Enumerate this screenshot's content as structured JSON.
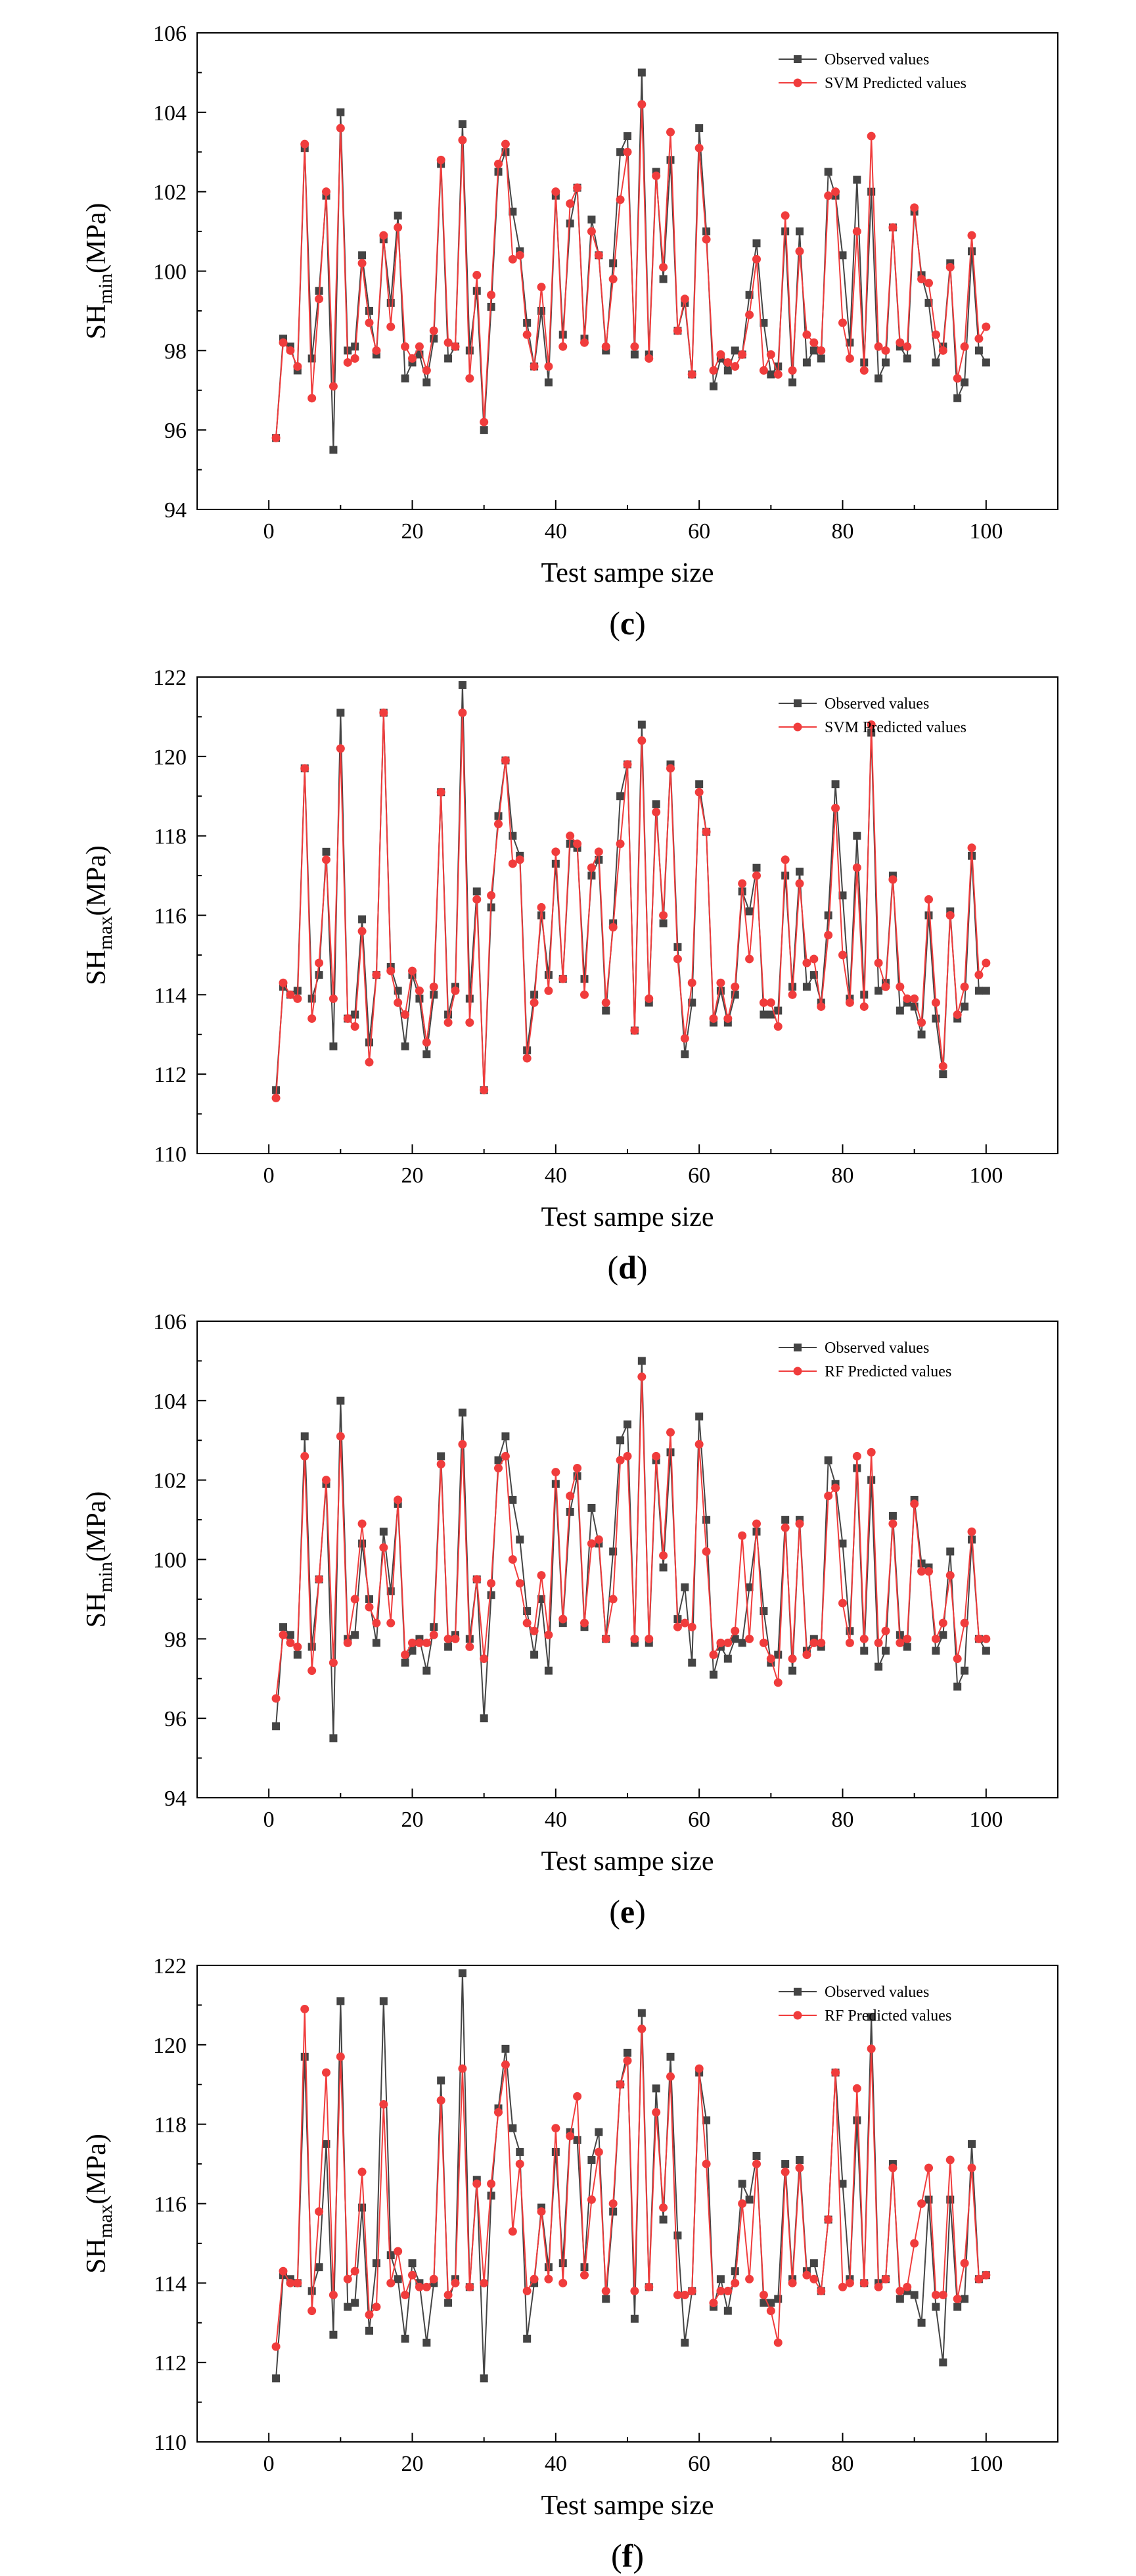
{
  "legend": {
    "observed_label": "Observed values",
    "observed_color": "#444444",
    "predicted_color": "#f03c3c"
  },
  "chart_data": [
    {
      "type": "line",
      "panel_label": "c",
      "ylabel": "SHmin(MPa)",
      "ylabel_main": "SH",
      "ylabel_sub": "min",
      "ylabel_unit": "(MPa)",
      "xlabel": "Test sampe size",
      "predicted_label": "SVM Predicted values",
      "xlim": [
        -10,
        110
      ],
      "ylim": [
        94,
        106
      ],
      "xticks": [
        0,
        20,
        40,
        60,
        80,
        100
      ],
      "yticks": [
        94,
        96,
        98,
        100,
        102,
        104,
        106
      ],
      "series": [
        {
          "name": "Observed values",
          "values": [
            95.8,
            98.3,
            98.1,
            97.5,
            103.1,
            97.8,
            99.5,
            101.9,
            95.5,
            104.0,
            98.0,
            98.1,
            100.4,
            99.0,
            97.9,
            100.8,
            99.2,
            101.4,
            97.3,
            97.7,
            97.9,
            97.2,
            98.3,
            102.7,
            97.8,
            98.1,
            103.7,
            98.0,
            99.5,
            96.0,
            99.1,
            102.5,
            103.0,
            101.5,
            100.5,
            98.7,
            97.6,
            99.0,
            97.2,
            101.9,
            98.4,
            101.2,
            102.1,
            98.3,
            101.3,
            100.4,
            98.0,
            100.2,
            103.0,
            103.4,
            97.9,
            105.0,
            97.9,
            102.5,
            99.8,
            102.8,
            98.5,
            99.2,
            97.4,
            103.6,
            101.0,
            97.1,
            97.8,
            97.5,
            98.0,
            97.9,
            99.4,
            100.7,
            98.7,
            97.4,
            97.6,
            101.0,
            97.2,
            101.0,
            97.7,
            98.0,
            97.8,
            102.5,
            101.9,
            100.4,
            98.2,
            102.3,
            97.7,
            102.0,
            97.3,
            97.7,
            101.1,
            98.1,
            97.8,
            101.5,
            99.9,
            99.2,
            97.7,
            98.1,
            100.2,
            96.8,
            97.2,
            100.5,
            98.0,
            97.7
          ]
        },
        {
          "name": "SVM Predicted values",
          "values": [
            95.8,
            98.2,
            98.0,
            97.6,
            103.2,
            96.8,
            99.3,
            102.0,
            97.1,
            103.6,
            97.7,
            97.8,
            100.2,
            98.7,
            98.0,
            100.9,
            98.6,
            101.1,
            98.1,
            97.8,
            98.1,
            97.5,
            98.5,
            102.8,
            98.2,
            98.1,
            103.3,
            97.3,
            99.9,
            96.2,
            99.4,
            102.7,
            103.2,
            100.3,
            100.4,
            98.4,
            97.6,
            99.6,
            97.6,
            102.0,
            98.1,
            101.7,
            102.1,
            98.2,
            101.0,
            100.4,
            98.1,
            99.8,
            101.8,
            103.0,
            98.1,
            104.2,
            97.8,
            102.4,
            100.1,
            103.5,
            98.5,
            99.3,
            97.4,
            103.1,
            100.8,
            97.5,
            97.9,
            97.7,
            97.6,
            97.9,
            98.9,
            100.3,
            97.5,
            97.9,
            97.4,
            101.4,
            97.5,
            100.5,
            98.4,
            98.2,
            98.0,
            101.9,
            102.0,
            98.7,
            97.8,
            101.0,
            97.5,
            103.4,
            98.1,
            98.0,
            101.1,
            98.2,
            98.1,
            101.6,
            99.8,
            99.7,
            98.4,
            98.0,
            100.1,
            97.3,
            98.1,
            100.9,
            98.3,
            98.6
          ]
        }
      ]
    },
    {
      "type": "line",
      "panel_label": "d",
      "ylabel": "SHmax(MPa)",
      "ylabel_main": "SH",
      "ylabel_sub": "max",
      "ylabel_unit": "(MPa)",
      "xlabel": "Test sampe size",
      "predicted_label": "SVM Predicted values",
      "xlim": [
        -10,
        110
      ],
      "ylim": [
        110,
        122
      ],
      "xticks": [
        0,
        20,
        40,
        60,
        80,
        100
      ],
      "yticks": [
        110,
        112,
        114,
        116,
        118,
        120,
        122
      ],
      "series": [
        {
          "name": "Observed values",
          "values": [
            111.6,
            114.2,
            114.0,
            114.1,
            119.7,
            113.9,
            114.5,
            117.6,
            112.7,
            121.1,
            113.4,
            113.5,
            115.9,
            112.8,
            114.5,
            121.1,
            114.7,
            114.1,
            112.7,
            114.5,
            113.9,
            112.5,
            114.0,
            119.1,
            113.5,
            114.2,
            121.8,
            113.9,
            116.6,
            111.6,
            116.2,
            118.5,
            119.9,
            118.0,
            117.5,
            112.6,
            114.0,
            116.0,
            114.5,
            117.3,
            114.4,
            117.8,
            117.7,
            114.4,
            117.0,
            117.4,
            113.6,
            115.8,
            119.0,
            119.8,
            113.1,
            120.8,
            113.8,
            118.8,
            115.8,
            119.8,
            115.2,
            112.5,
            113.8,
            119.3,
            118.1,
            113.3,
            114.1,
            113.3,
            114.0,
            116.6,
            116.1,
            117.2,
            113.5,
            113.5,
            113.6,
            117.0,
            114.2,
            117.1,
            114.2,
            114.5,
            113.8,
            116.0,
            119.3,
            116.5,
            113.9,
            118.0,
            114.0,
            120.6,
            114.1,
            114.3,
            117.0,
            113.6,
            113.8,
            113.7,
            113.0,
            116.0,
            113.4,
            112.0,
            116.1,
            113.4,
            113.7,
            117.5,
            114.1,
            114.1
          ]
        },
        {
          "name": "SVM Predicted values",
          "values": [
            111.4,
            114.3,
            114.0,
            113.9,
            119.7,
            113.4,
            114.8,
            117.4,
            113.9,
            120.2,
            113.4,
            113.2,
            115.6,
            112.3,
            114.5,
            121.1,
            114.6,
            113.8,
            113.5,
            114.6,
            114.1,
            112.8,
            114.2,
            119.1,
            113.3,
            114.1,
            121.1,
            113.3,
            116.4,
            111.6,
            116.5,
            118.3,
            119.9,
            117.3,
            117.4,
            112.4,
            113.8,
            116.2,
            114.1,
            117.6,
            114.4,
            118.0,
            117.8,
            114.0,
            117.2,
            117.6,
            113.8,
            115.7,
            117.8,
            119.8,
            113.1,
            120.4,
            113.9,
            118.6,
            116.0,
            119.7,
            114.9,
            112.9,
            114.3,
            119.1,
            118.1,
            113.4,
            114.3,
            113.4,
            114.2,
            116.8,
            114.9,
            117.0,
            113.8,
            113.8,
            113.2,
            117.4,
            114.0,
            116.8,
            114.8,
            114.9,
            113.7,
            115.5,
            118.7,
            115.0,
            113.8,
            117.2,
            113.7,
            120.8,
            114.8,
            114.2,
            116.9,
            114.2,
            113.9,
            113.9,
            113.3,
            116.4,
            113.8,
            112.2,
            116.0,
            113.5,
            114.2,
            117.7,
            114.5,
            114.8
          ]
        }
      ]
    },
    {
      "type": "line",
      "panel_label": "e",
      "ylabel": "SHmin(MPa)",
      "ylabel_main": "SH",
      "ylabel_sub": "min",
      "ylabel_unit": "(MPa)",
      "xlabel": "Test sampe size",
      "predicted_label": "RF Predicted values",
      "xlim": [
        -10,
        110
      ],
      "ylim": [
        94,
        106
      ],
      "xticks": [
        0,
        20,
        40,
        60,
        80,
        100
      ],
      "yticks": [
        94,
        96,
        98,
        100,
        102,
        104,
        106
      ],
      "series": [
        {
          "name": "Observed values",
          "values": [
            95.8,
            98.3,
            98.1,
            97.6,
            103.1,
            97.8,
            99.5,
            101.9,
            95.5,
            104.0,
            98.0,
            98.1,
            100.4,
            99.0,
            97.9,
            100.7,
            99.2,
            101.4,
            97.4,
            97.7,
            98.0,
            97.2,
            98.3,
            102.6,
            97.8,
            98.1,
            103.7,
            98.0,
            99.5,
            96.0,
            99.1,
            102.5,
            103.1,
            101.5,
            100.5,
            98.7,
            97.6,
            99.0,
            97.2,
            101.9,
            98.4,
            101.2,
            102.1,
            98.3,
            101.3,
            100.4,
            98.0,
            100.2,
            103.0,
            103.4,
            97.9,
            105.0,
            97.9,
            102.5,
            99.8,
            102.7,
            98.5,
            99.3,
            97.4,
            103.6,
            101.0,
            97.1,
            97.8,
            97.5,
            98.0,
            97.9,
            99.3,
            100.7,
            98.7,
            97.4,
            97.6,
            101.0,
            97.2,
            101.0,
            97.7,
            98.0,
            97.8,
            102.5,
            101.9,
            100.4,
            98.2,
            102.3,
            97.7,
            102.0,
            97.3,
            97.7,
            101.1,
            98.1,
            97.8,
            101.5,
            99.9,
            99.8,
            97.7,
            98.1,
            100.2,
            96.8,
            97.2,
            100.5,
            98.0,
            97.7
          ]
        },
        {
          "name": "RF Predicted values",
          "values": [
            96.5,
            98.1,
            97.9,
            97.8,
            102.6,
            97.2,
            99.5,
            102.0,
            97.4,
            103.1,
            97.9,
            99.0,
            100.9,
            98.8,
            98.4,
            100.3,
            98.4,
            101.5,
            97.6,
            97.9,
            97.9,
            97.9,
            98.1,
            102.4,
            98.0,
            98.0,
            102.9,
            97.8,
            99.5,
            97.5,
            99.4,
            102.3,
            102.6,
            100.0,
            99.4,
            98.4,
            98.2,
            99.6,
            98.1,
            102.2,
            98.5,
            101.6,
            102.3,
            98.4,
            100.4,
            100.5,
            98.0,
            99.0,
            102.5,
            102.6,
            98.0,
            104.6,
            98.0,
            102.6,
            100.1,
            103.2,
            98.3,
            98.4,
            98.3,
            102.9,
            100.2,
            97.6,
            97.9,
            97.9,
            98.2,
            100.6,
            98.0,
            100.9,
            97.9,
            97.5,
            96.9,
            100.8,
            97.5,
            100.9,
            97.6,
            97.9,
            97.9,
            101.6,
            101.8,
            98.9,
            97.9,
            102.6,
            98.0,
            102.7,
            97.9,
            98.2,
            100.9,
            97.9,
            98.0,
            101.4,
            99.7,
            99.7,
            98.0,
            98.4,
            99.6,
            97.5,
            98.4,
            100.7,
            98.0,
            98.0
          ]
        }
      ]
    },
    {
      "type": "line",
      "panel_label": "f",
      "ylabel": "SHmax(MPa)",
      "ylabel_main": "SH",
      "ylabel_sub": "max",
      "ylabel_unit": "(MPa)",
      "xlabel": "Test sampe size",
      "predicted_label": "RF Predicted values",
      "xlim": [
        -10,
        110
      ],
      "ylim": [
        110,
        122
      ],
      "xticks": [
        0,
        20,
        40,
        60,
        80,
        100
      ],
      "yticks": [
        110,
        112,
        114,
        116,
        118,
        120,
        122
      ],
      "series": [
        {
          "name": "Observed values",
          "values": [
            111.6,
            114.2,
            114.1,
            114.0,
            119.7,
            113.8,
            114.4,
            117.5,
            112.7,
            121.1,
            113.4,
            113.5,
            115.9,
            112.8,
            114.5,
            121.1,
            114.7,
            114.1,
            112.6,
            114.5,
            114.0,
            112.5,
            114.0,
            119.1,
            113.5,
            114.1,
            121.8,
            113.9,
            116.6,
            111.6,
            116.2,
            118.4,
            119.9,
            117.9,
            117.3,
            112.6,
            114.0,
            115.9,
            114.4,
            117.3,
            114.5,
            117.8,
            117.6,
            114.4,
            117.1,
            117.8,
            113.6,
            115.8,
            119.0,
            119.8,
            113.1,
            120.8,
            113.9,
            118.9,
            115.6,
            119.7,
            115.2,
            112.5,
            113.8,
            119.3,
            118.1,
            113.4,
            114.1,
            113.3,
            114.3,
            116.5,
            116.1,
            117.2,
            113.5,
            113.5,
            113.6,
            117.0,
            114.1,
            117.1,
            114.3,
            114.5,
            113.8,
            115.6,
            119.3,
            116.5,
            114.1,
            118.1,
            114.0,
            120.7,
            114.0,
            114.1,
            117.0,
            113.6,
            113.8,
            113.7,
            113.0,
            116.1,
            113.4,
            112.0,
            116.1,
            113.4,
            113.6,
            117.5,
            114.1,
            114.2
          ]
        },
        {
          "name": "RF Predicted values",
          "values": [
            112.4,
            114.3,
            114.0,
            114.0,
            120.9,
            113.3,
            115.8,
            119.3,
            113.7,
            119.7,
            114.1,
            114.3,
            116.8,
            113.2,
            113.4,
            118.5,
            114.0,
            114.8,
            113.7,
            114.2,
            113.9,
            113.9,
            114.1,
            118.6,
            113.7,
            114.0,
            119.4,
            113.9,
            116.5,
            114.0,
            116.5,
            118.3,
            119.5,
            115.3,
            117.0,
            113.8,
            114.1,
            115.8,
            114.1,
            117.9,
            114.0,
            117.7,
            118.7,
            114.2,
            116.1,
            117.3,
            113.8,
            116.0,
            119.0,
            119.6,
            113.8,
            120.4,
            113.9,
            118.3,
            115.9,
            119.2,
            113.7,
            113.7,
            113.8,
            119.4,
            117.0,
            113.5,
            113.8,
            113.8,
            114.0,
            116.0,
            114.1,
            117.0,
            113.7,
            113.3,
            112.5,
            116.8,
            114.0,
            116.9,
            114.2,
            114.1,
            113.8,
            115.6,
            119.3,
            113.9,
            114.0,
            118.9,
            114.0,
            119.9,
            113.9,
            114.1,
            116.9,
            113.8,
            113.9,
            115.0,
            116.0,
            116.9,
            113.7,
            113.7,
            117.1,
            113.6,
            114.5,
            116.9,
            114.1,
            114.2
          ]
        }
      ]
    }
  ]
}
